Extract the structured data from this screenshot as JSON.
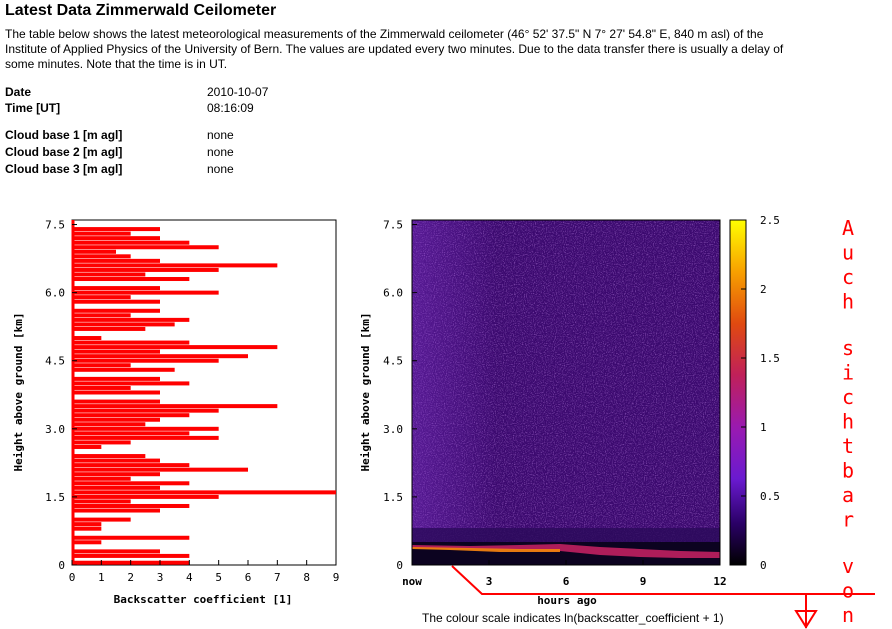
{
  "page": {
    "title": "Latest Data Zimmerwald Ceilometer",
    "intro": "The table below shows the latest meteorological measurements of the Zimmerwald ceilometer (46° 52' 37.5\" N 7° 27' 54.8\" E, 840 m asl) of the Institute of Applied Physics of the University of Bern. The values are updated every two minutes. Due to the data transfer there is usually a delay of some minutes. Note that the time is in UT."
  },
  "measurements": {
    "date": {
      "label": "Date",
      "value": "2010-10-07"
    },
    "time": {
      "label": "Time [UT]",
      "value": "08:16:09"
    },
    "cloud1": {
      "label": "Cloud base 1 [m agl]",
      "value": "none"
    },
    "cloud2": {
      "label": "Cloud base 2 [m agl]",
      "value": "none"
    },
    "cloud3": {
      "label": "Cloud base 3 [m agl]",
      "value": "none"
    }
  },
  "colors": {
    "profile_bar": "#ff0000",
    "annotation": "#ff0000",
    "heatmap_background": "#3a0a6e"
  },
  "annotation": {
    "vertical_text": "Auch sichtbar von",
    "arrow_icon": "down-arrow-icon"
  },
  "chart_data": [
    {
      "type": "bar",
      "orientation": "horizontal",
      "xlabel": "Backscatter coefficient [1]",
      "ylabel": "Height above ground [km]",
      "xlim": [
        0,
        9
      ],
      "ylim": [
        0,
        7.6
      ],
      "x_ticks": [
        "0",
        "1",
        "2",
        "3",
        "4",
        "5",
        "6",
        "7",
        "8",
        "9"
      ],
      "y_ticks": [
        "0",
        "1.5",
        "3.0",
        "4.5",
        "6.0",
        "7.5"
      ],
      "heights_km": [
        7.4,
        7.3,
        7.2,
        7.1,
        7.0,
        6.9,
        6.8,
        6.7,
        6.6,
        6.5,
        6.4,
        6.3,
        6.1,
        6.0,
        5.9,
        5.8,
        5.6,
        5.5,
        5.4,
        5.3,
        5.2,
        5.0,
        4.9,
        4.8,
        4.7,
        4.6,
        4.5,
        4.4,
        4.3,
        4.1,
        4.0,
        3.9,
        3.8,
        3.6,
        3.5,
        3.4,
        3.3,
        3.2,
        3.1,
        3.0,
        2.9,
        2.8,
        2.7,
        2.6,
        2.4,
        2.3,
        2.2,
        2.1,
        2.0,
        1.9,
        1.8,
        1.7,
        1.6,
        1.5,
        1.4,
        1.3,
        1.2,
        1.0,
        0.9,
        0.8,
        0.6,
        0.5,
        0.3,
        0.2,
        0.05
      ],
      "values": [
        3.0,
        2.0,
        3.0,
        4.0,
        5.0,
        1.5,
        2.0,
        3.0,
        7.0,
        5.0,
        2.5,
        4.0,
        3.0,
        5.0,
        2.0,
        3.0,
        3.0,
        2.0,
        4.0,
        3.5,
        2.5,
        1.0,
        4.0,
        7.0,
        3.0,
        6.0,
        5.0,
        2.0,
        3.5,
        3.0,
        4.0,
        2.0,
        3.0,
        3.0,
        7.0,
        5.0,
        4.0,
        3.0,
        2.5,
        5.0,
        4.0,
        5.0,
        2.0,
        1.0,
        2.5,
        3.0,
        4.0,
        6.0,
        3.0,
        2.0,
        4.0,
        3.0,
        9.0,
        5.0,
        2.0,
        4.0,
        3.0,
        2.0,
        1.0,
        1.0,
        4.0,
        1.0,
        3.0,
        4.0,
        4.0
      ]
    },
    {
      "type": "heatmap",
      "xlabel": "hours ago",
      "ylabel": "Height above ground [km]",
      "x_ticks": [
        "now",
        "3",
        "6",
        "9",
        "12"
      ],
      "y_ticks": [
        "0",
        "1.5",
        "3.0",
        "4.5",
        "6.0",
        "7.5"
      ],
      "xlim": [
        0,
        12
      ],
      "ylim": [
        0,
        7.6
      ],
      "colorbar_ticks": [
        "0",
        "0.5",
        "1",
        "1.5",
        "2",
        "2.5"
      ],
      "colorbar_range": [
        0,
        2.5
      ],
      "caption": "The colour scale indicates ln(backscatter_coefficient + 1)"
    }
  ]
}
